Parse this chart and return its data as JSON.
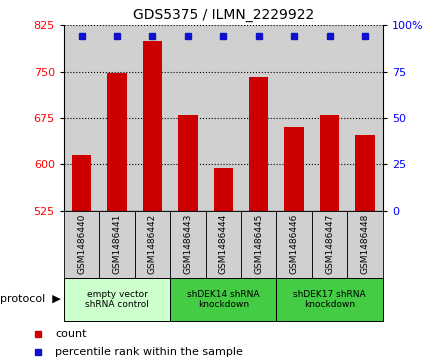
{
  "title": "GDS5375 / ILMN_2229922",
  "samples": [
    "GSM1486440",
    "GSM1486441",
    "GSM1486442",
    "GSM1486443",
    "GSM1486444",
    "GSM1486445",
    "GSM1486446",
    "GSM1486447",
    "GSM1486448"
  ],
  "counts": [
    615,
    748,
    800,
    680,
    594,
    742,
    660,
    680,
    648
  ],
  "percentile_value": 808,
  "ylim_left": [
    525,
    825
  ],
  "ylim_right": [
    0,
    100
  ],
  "yticks_left": [
    525,
    600,
    675,
    750,
    825
  ],
  "yticks_right": [
    0,
    25,
    50,
    75,
    100
  ],
  "bar_color": "#cc0000",
  "dot_color": "#1111cc",
  "bar_width": 0.55,
  "groups": [
    {
      "label": "empty vector\nshRNA control",
      "start": 0,
      "end": 3,
      "color": "#ccffcc"
    },
    {
      "label": "shDEK14 shRNA\nknockdown",
      "start": 3,
      "end": 6,
      "color": "#44cc44"
    },
    {
      "label": "shDEK17 shRNA\nknockdown",
      "start": 6,
      "end": 9,
      "color": "#44cc44"
    }
  ],
  "legend_count_label": "count",
  "legend_percentile_label": "percentile rank within the sample",
  "protocol_label": "protocol"
}
